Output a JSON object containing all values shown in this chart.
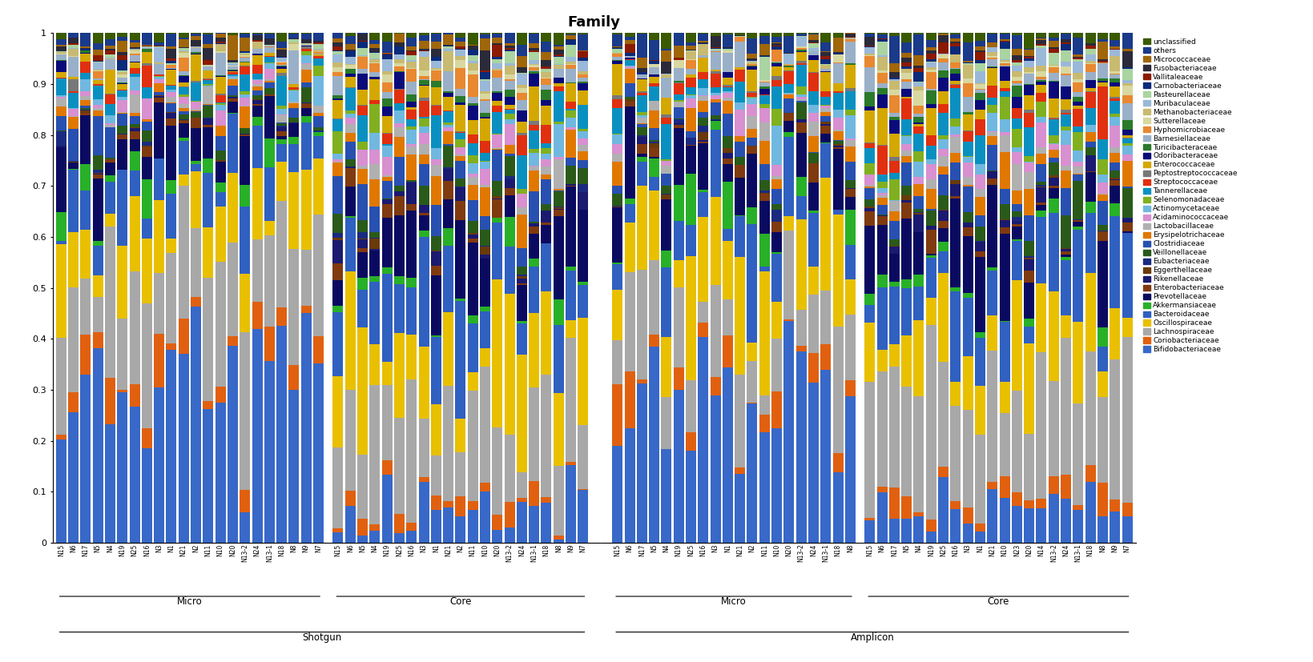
{
  "title": "Family",
  "legend_labels_top_to_bottom": [
    "unclassified",
    "others",
    "Micrococcaceae",
    "Fusobacteriaceae",
    "Vallitaleaceae",
    "Carnobacteriaceae",
    "Pasteurellaceae",
    "Muribaculaceae",
    "Methanobacteriaceae",
    "Sutterellaceae",
    "Hyphomicrobiaceae",
    "Barnesiellaceae",
    "Turicibacteraceae",
    "Odoribacteraceae",
    "Enterococcaceae",
    "Peptostreptococcaceae",
    "Streptococcaceae",
    "Tannerellaceae",
    "Selenomonadaceae",
    "Actinomycetaceae",
    "Acidaminococcaceae",
    "Lactobacillaceae",
    "Erysipelotrichaceae",
    "Clostridiaceae",
    "Veillonellaceae",
    "Eubacteriaceae",
    "Eggerthellaceae",
    "Rikenellaceae",
    "Enterobacteriaceae",
    "Prevotellaceae",
    "Akkermansiaceae",
    "Bacteroidaceae",
    "Oscillospiraceae",
    "Lachnospiraceae",
    "Coriobacteriaceae",
    "Bifidobacteriaceae"
  ],
  "legend_colors_top_to_bottom": [
    "#3a5a00",
    "#1a3a8a",
    "#a0660a",
    "#2a2a3a",
    "#8b1a00",
    "#0a2a7a",
    "#aad4a0",
    "#9ab8d8",
    "#c8ba70",
    "#d8d8a0",
    "#e88830",
    "#9ab0c8",
    "#2a7a2a",
    "#0a0a7a",
    "#d4a800",
    "#787878",
    "#e03010",
    "#0a90c0",
    "#80b020",
    "#70b8e0",
    "#d890d0",
    "#b0b0b0",
    "#e07800",
    "#2850b0",
    "#2a5a1a",
    "#1a2a80",
    "#6a3a0a",
    "#1a1a70",
    "#803a10",
    "#0a0a60",
    "#28b028",
    "#3060c0",
    "#e8c000",
    "#a8a8a8",
    "#e06010",
    "#3868c8"
  ],
  "shotgun_micro_samples": [
    "N15",
    "N6",
    "N17",
    "N5",
    "N4",
    "N19",
    "N25",
    "N16",
    "N3",
    "N1",
    "N21",
    "N2",
    "N11",
    "N10",
    "N20",
    "N13-2",
    "N24",
    "N13-1",
    "N18",
    "N8",
    "N9",
    "N7"
  ],
  "shotgun_core_samples": [
    "N15",
    "N6",
    "N5",
    "N4",
    "N19",
    "N25",
    "N16",
    "N3",
    "N1",
    "N21",
    "N2",
    "N11",
    "N10",
    "N20",
    "N13-2",
    "N24",
    "N13-1",
    "N18",
    "N8",
    "N9",
    "N7"
  ],
  "amplicon_micro_samples": [
    "N15",
    "N6",
    "N17",
    "N5",
    "N4",
    "N19",
    "N25",
    "N16",
    "N3",
    "N1",
    "N21",
    "N2",
    "N11",
    "N10",
    "N20",
    "N13-2",
    "N24",
    "N13-1",
    "N18",
    "N8"
  ],
  "amplicon_core_samples": [
    "N15",
    "N6",
    "N17",
    "N5",
    "N4",
    "N19",
    "N25",
    "N16",
    "N3",
    "N1",
    "N21",
    "N10",
    "N23",
    "N20",
    "N14",
    "N13-2",
    "N24",
    "N13-1",
    "N18",
    "N8",
    "N9",
    "N7"
  ]
}
